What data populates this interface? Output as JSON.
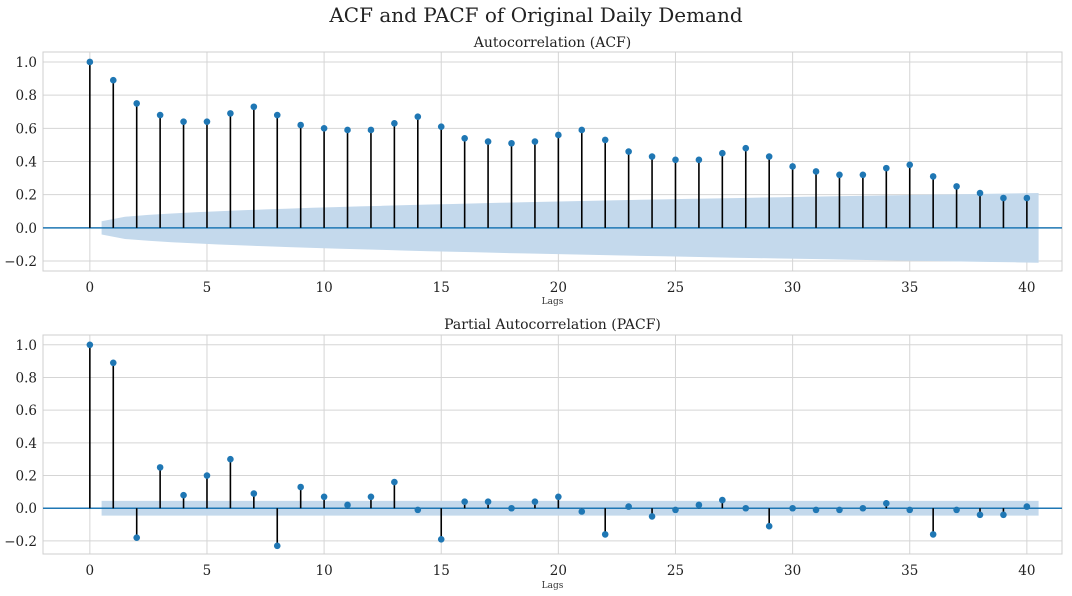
{
  "figure_title": "ACF and PACF of Original Daily Demand",
  "colors": {
    "stem": "#000000",
    "marker": "#1f77b4",
    "band": "#c4d9ec",
    "zero_line": "#1f77b4",
    "grid": "#d5d5d5"
  },
  "chart_data": [
    {
      "type": "stem",
      "title": "Autocorrelation (ACF)",
      "xlabel": "Lags",
      "ylabel": "",
      "xlim": [
        -2,
        40.0
      ],
      "ylim": [
        -0.26,
        1.06
      ],
      "xticks": [
        0,
        5,
        10,
        15,
        20,
        25,
        30,
        35,
        40
      ],
      "yticks": [
        -0.2,
        0.0,
        0.2,
        0.4,
        0.6,
        0.8,
        1.0
      ],
      "xtick_labels": [
        "0",
        "5",
        "10",
        "15",
        "20",
        "25",
        "30",
        "35",
        "40"
      ],
      "ytick_labels": [
        "−0.2",
        "0.0",
        "0.2",
        "0.4",
        "0.6",
        "0.8",
        "1.0"
      ],
      "grid": true,
      "confidence_band": {
        "x_start": 0.5,
        "x_end": 40.5,
        "half_width_start": 0.04,
        "half_width_end": 0.21
      },
      "lags": [
        0,
        1,
        2,
        3,
        4,
        5,
        6,
        7,
        8,
        9,
        10,
        11,
        12,
        13,
        14,
        15,
        16,
        17,
        18,
        19,
        20,
        21,
        22,
        23,
        24,
        25,
        26,
        27,
        28,
        29,
        30,
        31,
        32,
        33,
        34,
        35,
        36,
        37,
        38,
        39,
        40
      ],
      "values": [
        1.0,
        0.89,
        0.75,
        0.68,
        0.64,
        0.64,
        0.69,
        0.73,
        0.68,
        0.62,
        0.6,
        0.59,
        0.59,
        0.63,
        0.67,
        0.61,
        0.54,
        0.52,
        0.51,
        0.52,
        0.56,
        0.59,
        0.53,
        0.46,
        0.43,
        0.41,
        0.41,
        0.45,
        0.48,
        0.43,
        0.37,
        0.34,
        0.32,
        0.32,
        0.36,
        0.38,
        0.31,
        0.25,
        0.21,
        0.18,
        0.18
      ]
    },
    {
      "type": "stem",
      "title": "Partial Autocorrelation (PACF)",
      "xlabel": "Lags",
      "ylabel": "",
      "xlim": [
        -2,
        40.0
      ],
      "ylim": [
        -0.28,
        1.06
      ],
      "xticks": [
        0,
        5,
        10,
        15,
        20,
        25,
        30,
        35,
        40
      ],
      "yticks": [
        -0.2,
        0.0,
        0.2,
        0.4,
        0.6,
        0.8,
        1.0
      ],
      "xtick_labels": [
        "0",
        "5",
        "10",
        "15",
        "20",
        "25",
        "30",
        "35",
        "40"
      ],
      "ytick_labels": [
        "−0.2",
        "0.0",
        "0.2",
        "0.4",
        "0.6",
        "0.8",
        "1.0"
      ],
      "grid": true,
      "confidence_band": {
        "x_start": 0.5,
        "x_end": 40.5,
        "half_width_start": 0.045,
        "half_width_end": 0.045
      },
      "lags": [
        0,
        1,
        2,
        3,
        4,
        5,
        6,
        7,
        8,
        9,
        10,
        11,
        12,
        13,
        14,
        15,
        16,
        17,
        18,
        19,
        20,
        21,
        22,
        23,
        24,
        25,
        26,
        27,
        28,
        29,
        30,
        31,
        32,
        33,
        34,
        35,
        36,
        37,
        38,
        39,
        40
      ],
      "values": [
        1.0,
        0.89,
        -0.18,
        0.25,
        0.08,
        0.2,
        0.3,
        0.09,
        -0.23,
        0.13,
        0.07,
        0.02,
        0.07,
        0.16,
        -0.01,
        -0.19,
        0.04,
        0.04,
        0.0,
        0.04,
        0.07,
        -0.02,
        -0.16,
        0.01,
        -0.05,
        -0.01,
        0.02,
        0.05,
        0.0,
        -0.11,
        0.0,
        -0.01,
        -0.01,
        0.0,
        0.03,
        -0.01,
        -0.16,
        -0.01,
        -0.04,
        -0.04,
        0.01
      ]
    }
  ]
}
